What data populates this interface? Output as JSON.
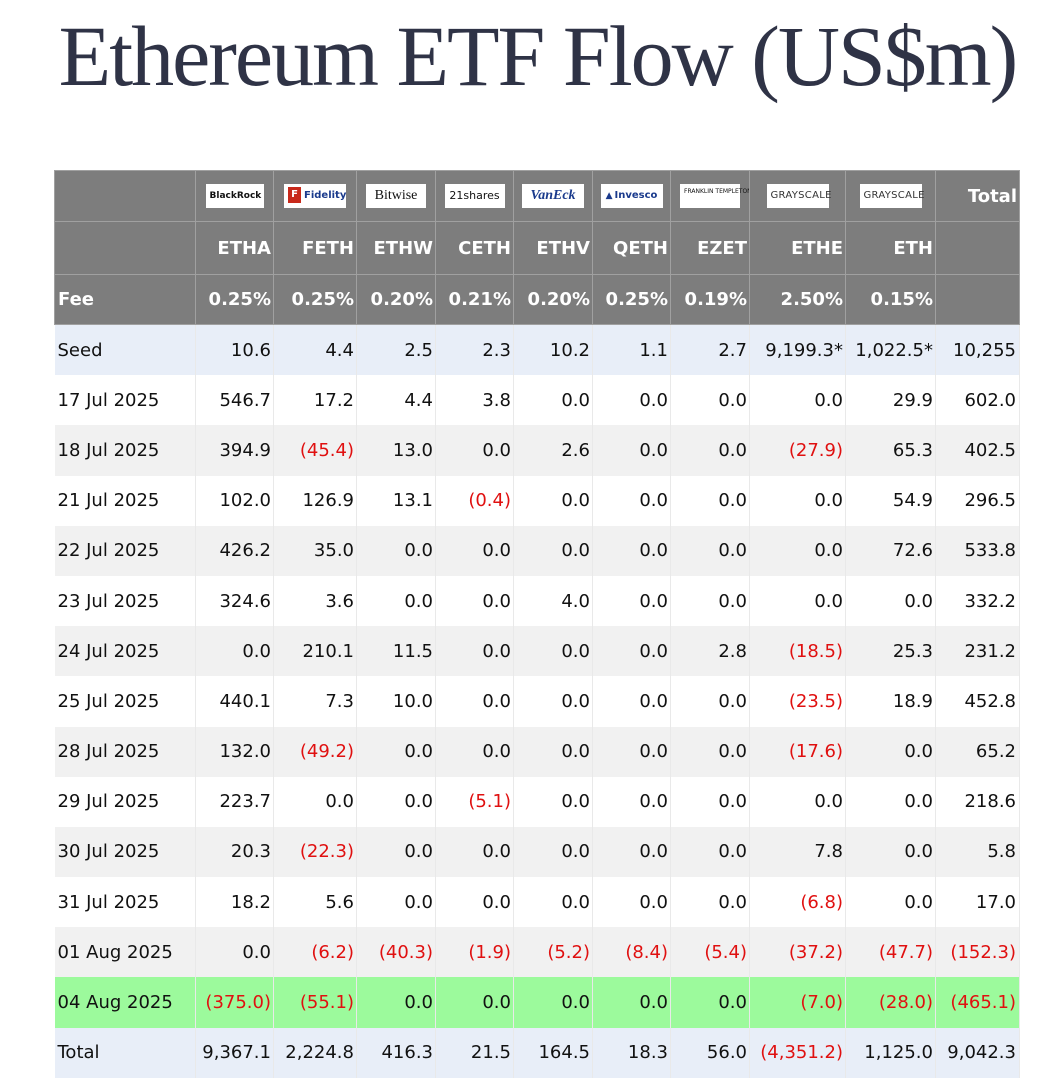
{
  "page": {
    "title": "Ethereum ETF Flow (US$m)"
  },
  "table": {
    "issuers": [
      {
        "logo": "BlackRock",
        "ticker": "ETHA",
        "fee": "0.25%"
      },
      {
        "logo": "Fidelity",
        "ticker": "FETH",
        "fee": "0.25%"
      },
      {
        "logo": "Bitwise",
        "ticker": "ETHW",
        "fee": "0.20%"
      },
      {
        "logo": "21shares",
        "ticker": "CETH",
        "fee": "0.21%"
      },
      {
        "logo": "VanEck",
        "ticker": "ETHV",
        "fee": "0.20%"
      },
      {
        "logo": "Invesco",
        "ticker": "QETH",
        "fee": "0.25%"
      },
      {
        "logo": "FRANKLIN TEMPLETON",
        "ticker": "EZET",
        "fee": "0.19%"
      },
      {
        "logo": "GRAYSCALE",
        "ticker": "ETHE",
        "fee": "2.50%"
      },
      {
        "logo": "GRAYSCALE",
        "ticker": "ETH",
        "fee": "0.15%"
      }
    ],
    "total_header": "Total",
    "fee_label": "Fee",
    "rows": [
      {
        "label": "Seed",
        "values": [
          "10.6",
          "4.4",
          "2.5",
          "2.3",
          "10.2",
          "1.1",
          "2.7",
          "9,199.3*",
          "1,022.5*",
          "10,255"
        ]
      },
      {
        "label": "17 Jul 2025",
        "values": [
          "546.7",
          "17.2",
          "4.4",
          "3.8",
          "0.0",
          "0.0",
          "0.0",
          "0.0",
          "29.9",
          "602.0"
        ]
      },
      {
        "label": "18 Jul 2025",
        "values": [
          "394.9",
          "(45.4)",
          "13.0",
          "0.0",
          "2.6",
          "0.0",
          "0.0",
          "(27.9)",
          "65.3",
          "402.5"
        ]
      },
      {
        "label": "21 Jul 2025",
        "values": [
          "102.0",
          "126.9",
          "13.1",
          "(0.4)",
          "0.0",
          "0.0",
          "0.0",
          "0.0",
          "54.9",
          "296.5"
        ]
      },
      {
        "label": "22 Jul 2025",
        "values": [
          "426.2",
          "35.0",
          "0.0",
          "0.0",
          "0.0",
          "0.0",
          "0.0",
          "0.0",
          "72.6",
          "533.8"
        ]
      },
      {
        "label": "23 Jul 2025",
        "values": [
          "324.6",
          "3.6",
          "0.0",
          "0.0",
          "4.0",
          "0.0",
          "0.0",
          "0.0",
          "0.0",
          "332.2"
        ]
      },
      {
        "label": "24 Jul 2025",
        "values": [
          "0.0",
          "210.1",
          "11.5",
          "0.0",
          "0.0",
          "0.0",
          "2.8",
          "(18.5)",
          "25.3",
          "231.2"
        ]
      },
      {
        "label": "25 Jul 2025",
        "values": [
          "440.1",
          "7.3",
          "10.0",
          "0.0",
          "0.0",
          "0.0",
          "0.0",
          "(23.5)",
          "18.9",
          "452.8"
        ]
      },
      {
        "label": "28 Jul 2025",
        "values": [
          "132.0",
          "(49.2)",
          "0.0",
          "0.0",
          "0.0",
          "0.0",
          "0.0",
          "(17.6)",
          "0.0",
          "65.2"
        ]
      },
      {
        "label": "29 Jul 2025",
        "values": [
          "223.7",
          "0.0",
          "0.0",
          "(5.1)",
          "0.0",
          "0.0",
          "0.0",
          "0.0",
          "0.0",
          "218.6"
        ]
      },
      {
        "label": "30 Jul 2025",
        "values": [
          "20.3",
          "(22.3)",
          "0.0",
          "0.0",
          "0.0",
          "0.0",
          "0.0",
          "7.8",
          "0.0",
          "5.8"
        ]
      },
      {
        "label": "31 Jul 2025",
        "values": [
          "18.2",
          "5.6",
          "0.0",
          "0.0",
          "0.0",
          "0.0",
          "0.0",
          "(6.8)",
          "0.0",
          "17.0"
        ]
      },
      {
        "label": "01 Aug 2025",
        "values": [
          "0.0",
          "(6.2)",
          "(40.3)",
          "(1.9)",
          "(5.2)",
          "(8.4)",
          "(5.4)",
          "(37.2)",
          "(47.7)",
          "(152.3)"
        ]
      },
      {
        "label": "04 Aug 2025",
        "values": [
          "(375.0)",
          "(55.1)",
          "0.0",
          "0.0",
          "0.0",
          "0.0",
          "0.0",
          "(7.0)",
          "(28.0)",
          "(465.1)"
        ]
      },
      {
        "label": "Total",
        "values": [
          "9,367.1",
          "2,224.8",
          "416.3",
          "21.5",
          "164.5",
          "18.3",
          "56.0",
          "(4,351.2)",
          "1,125.0",
          "9,042.3"
        ]
      }
    ]
  },
  "colors": {
    "header_bg": "#7d7d7d",
    "negative": "#e01010",
    "highlight_row": "#9cfa9c",
    "seed_total_row": "#e8eef8",
    "title": "#2f3346"
  }
}
